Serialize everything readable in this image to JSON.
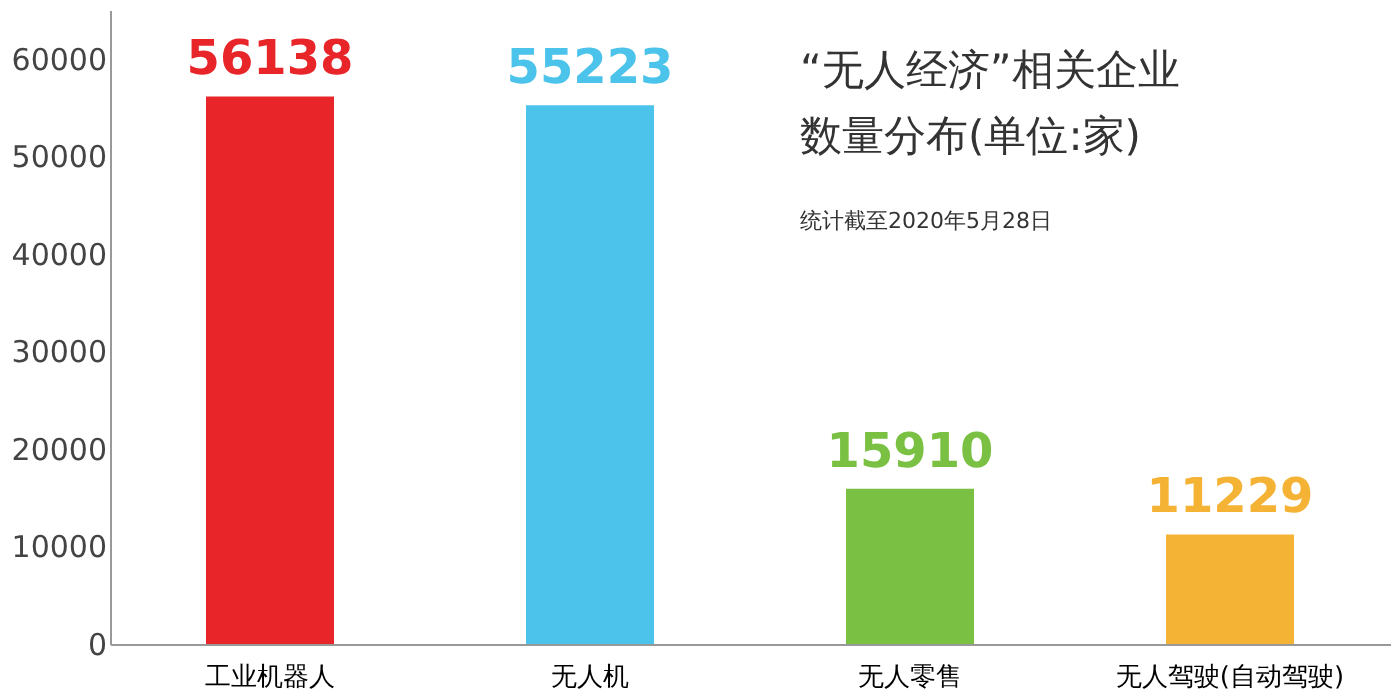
{
  "chart_data": {
    "type": "bar",
    "title": "“无人经济”相关企业数量分布(单位:家)",
    "categories": [
      "工业机器人",
      "无人机",
      "无人零售",
      "无人驾驶(自动驾驶)"
    ],
    "values": [
      56138,
      55223,
      15910,
      11229
    ],
    "colors": [
      "#e8262a",
      "#4cc3ea",
      "#7ac143",
      "#f5b335"
    ],
    "ylim": [
      0,
      65000
    ],
    "yticks": [
      0,
      10000,
      20000,
      30000,
      40000,
      50000,
      60000
    ],
    "data_labels": true,
    "grid": false,
    "annotations": [
      "统计截至2020年5月28日"
    ]
  }
}
